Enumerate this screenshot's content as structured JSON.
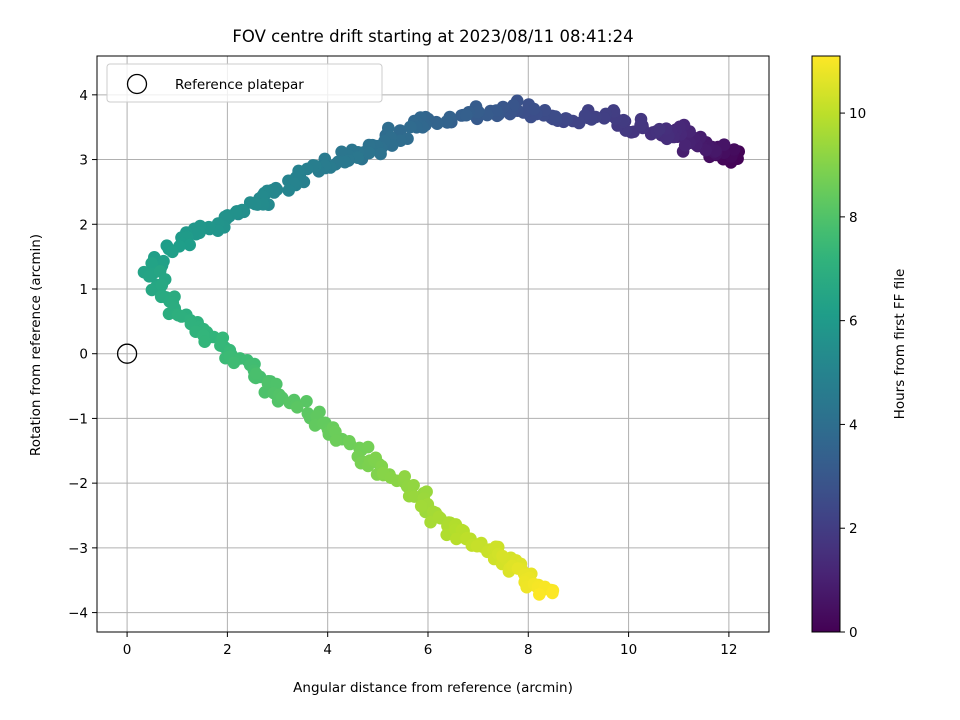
{
  "chart_data": {
    "type": "scatter",
    "title": "FOV centre drift starting at 2023/08/11 08:41:24",
    "xlabel": "Angular distance from reference (arcmin)",
    "ylabel": "Rotation from reference (arcmin)",
    "xlim": [
      -0.6,
      12.8
    ],
    "ylim": [
      -4.3,
      4.6
    ],
    "xticks": [
      0,
      2,
      4,
      6,
      8,
      10,
      12
    ],
    "yticks": [
      -4,
      -3,
      -2,
      -1,
      0,
      1,
      2,
      3,
      4
    ],
    "grid": true,
    "legend": {
      "placement": "top-left",
      "entries": [
        "Reference platepar"
      ]
    },
    "reference_point": {
      "x": 0,
      "y": 0
    },
    "colorbar": {
      "label": "Hours from first FF file",
      "colormap": "viridis",
      "range": [
        0,
        11.1
      ],
      "ticks": [
        0,
        2,
        4,
        6,
        8,
        10
      ]
    },
    "anchors": [
      {
        "h": 0.0,
        "x": 12.1,
        "y": 3.0
      },
      {
        "h": 0.3,
        "x": 11.9,
        "y": 3.1
      },
      {
        "h": 0.8,
        "x": 11.5,
        "y": 3.2
      },
      {
        "h": 1.2,
        "x": 11.0,
        "y": 3.4
      },
      {
        "h": 1.6,
        "x": 10.5,
        "y": 3.4
      },
      {
        "h": 2.0,
        "x": 9.6,
        "y": 3.7
      },
      {
        "h": 2.4,
        "x": 8.6,
        "y": 3.6
      },
      {
        "h": 2.8,
        "x": 7.8,
        "y": 3.8
      },
      {
        "h": 3.2,
        "x": 7.0,
        "y": 3.7
      },
      {
        "h": 3.6,
        "x": 6.0,
        "y": 3.6
      },
      {
        "h": 4.0,
        "x": 5.2,
        "y": 3.3
      },
      {
        "h": 4.4,
        "x": 4.4,
        "y": 3.0
      },
      {
        "h": 4.8,
        "x": 3.5,
        "y": 2.8
      },
      {
        "h": 5.2,
        "x": 2.8,
        "y": 2.4
      },
      {
        "h": 5.6,
        "x": 2.0,
        "y": 2.1
      },
      {
        "h": 6.0,
        "x": 1.2,
        "y": 1.8
      },
      {
        "h": 6.4,
        "x": 0.5,
        "y": 1.3
      },
      {
        "h": 6.8,
        "x": 0.8,
        "y": 0.8
      },
      {
        "h": 7.2,
        "x": 1.5,
        "y": 0.3
      },
      {
        "h": 7.6,
        "x": 2.2,
        "y": -0.1
      },
      {
        "h": 8.0,
        "x": 3.0,
        "y": -0.6
      },
      {
        "h": 8.4,
        "x": 3.9,
        "y": -1.1
      },
      {
        "h": 8.8,
        "x": 4.8,
        "y": -1.6
      },
      {
        "h": 9.2,
        "x": 5.5,
        "y": -2.0
      },
      {
        "h": 9.6,
        "x": 6.2,
        "y": -2.5
      },
      {
        "h": 10.0,
        "x": 6.9,
        "y": -2.9
      },
      {
        "h": 10.4,
        "x": 7.5,
        "y": -3.2
      },
      {
        "h": 10.8,
        "x": 8.0,
        "y": -3.5
      },
      {
        "h": 11.1,
        "x": 8.5,
        "y": -3.7
      }
    ]
  }
}
